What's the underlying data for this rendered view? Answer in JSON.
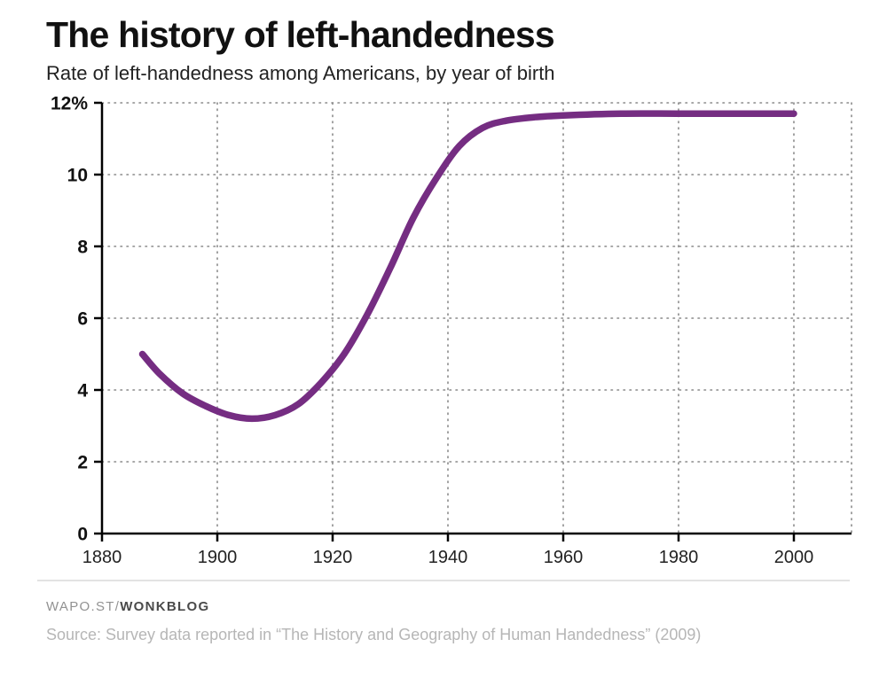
{
  "header": {
    "title": "The history of left-handedness",
    "subtitle": "Rate of left-handedness among Americans, by year of birth"
  },
  "chart_data": {
    "type": "line",
    "series_name": "Rate of left-handedness among Americans",
    "x": [
      1887,
      1890,
      1894,
      1898,
      1902,
      1906,
      1910,
      1914,
      1918,
      1922,
      1926,
      1930,
      1934,
      1938,
      1942,
      1946,
      1950,
      1955,
      1960,
      1970,
      1980,
      1990,
      2000
    ],
    "y": [
      5.0,
      4.45,
      3.9,
      3.55,
      3.3,
      3.2,
      3.3,
      3.6,
      4.2,
      5.0,
      6.1,
      7.4,
      8.8,
      9.9,
      10.8,
      11.3,
      11.5,
      11.6,
      11.65,
      11.7,
      11.7,
      11.7,
      11.7
    ],
    "xlim": [
      1880,
      2010
    ],
    "ylim": [
      0,
      12
    ],
    "x_ticks": [
      1880,
      1900,
      1920,
      1940,
      1960,
      1980,
      2000
    ],
    "x_tick_labels": [
      "1880",
      "1900",
      "1920",
      "1940",
      "1960",
      "1980",
      "2000"
    ],
    "y_ticks": [
      0,
      2,
      4,
      6,
      8,
      10,
      12
    ],
    "y_tick_labels": [
      "0",
      "2",
      "4",
      "6",
      "8",
      "10",
      "12%"
    ],
    "line_color": "#752d82",
    "grid": "dotted",
    "grid_color": "#8a8a8a",
    "axis_color": "#000000",
    "legend": "none",
    "title": "The history of left-handedness",
    "xlabel": "",
    "ylabel": ""
  },
  "footer": {
    "brand_prefix": "WAPO.ST/",
    "brand_bold": "WONKBLOG",
    "source": "Source: Survey data reported in “The History and Geography of Human Handedness” (2009)"
  }
}
